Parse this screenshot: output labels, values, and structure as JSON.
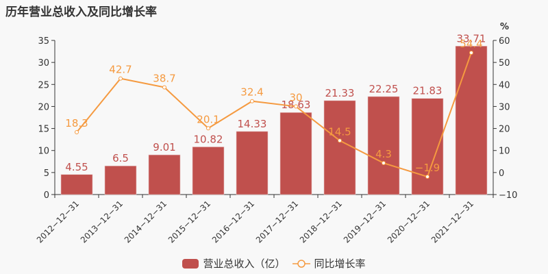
{
  "title": "历年营业总收入及同比增长率",
  "legend": {
    "bar_label": "营业总收入（亿）",
    "line_label": "同比增长率"
  },
  "axes": {
    "left_ticks": [
      "0",
      "5",
      "10",
      "15",
      "20",
      "25",
      "30",
      "35"
    ],
    "right_ticks": [
      "−10",
      "0",
      "10",
      "20",
      "30",
      "40",
      "50",
      "60"
    ],
    "right_unit": "%"
  },
  "colors": {
    "bar": "#c0504d",
    "line": "#f59a40",
    "text": "#333333",
    "bg": "#f8f8f8"
  },
  "chart_data": {
    "type": "bar+line",
    "title": "历年营业总收入及同比增长率",
    "categories": [
      "2012-12-31",
      "2013-12-31",
      "2014-12-31",
      "2015-12-31",
      "2016-12-31",
      "2017-12-31",
      "2018-12-31",
      "2019-12-31",
      "2020-12-31",
      "2021-12-31"
    ],
    "series": [
      {
        "name": "营业总收入（亿）",
        "type": "bar",
        "axis": "left",
        "values": [
          4.55,
          6.5,
          9.01,
          10.82,
          14.33,
          18.63,
          21.33,
          22.25,
          21.83,
          33.71
        ]
      },
      {
        "name": "同比增长率",
        "type": "line",
        "axis": "right",
        "values": [
          18.3,
          42.7,
          38.7,
          20.1,
          32.4,
          30,
          14.5,
          4.3,
          -1.9,
          54.4
        ]
      }
    ],
    "ylim_left": [
      0,
      35
    ],
    "ylim_right": [
      -10,
      60
    ],
    "ylabel_right": "%",
    "grid": false,
    "legend_position": "bottom"
  }
}
